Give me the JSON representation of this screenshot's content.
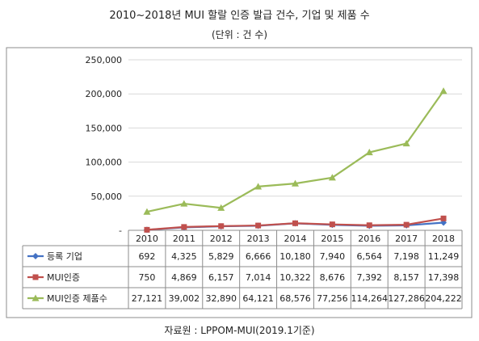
{
  "title": "2010~2018년 MUI 할랄 인증 발급 건수, 기업 및 제품 수",
  "subtitle": "(단위 : 건 수)",
  "source": "자료원 : LPPOM-MUI(2019.1기준)",
  "chart_data": {
    "type": "line",
    "categories": [
      "2010",
      "2011",
      "2012",
      "2013",
      "2014",
      "2015",
      "2016",
      "2017",
      "2018"
    ],
    "ylim": [
      0,
      250000
    ],
    "y_ticks": [
      "-",
      "50,000",
      "100,000",
      "150,000",
      "200,000",
      "250,000"
    ],
    "grid": true,
    "legend": "bottom-table",
    "series": [
      {
        "name": "등록 기업",
        "color": "#4472C4",
        "marker": "diamond",
        "values": [
          692,
          4325,
          5829,
          6666,
          10180,
          7940,
          6564,
          7198,
          11249
        ],
        "labels": [
          "692",
          "4,325",
          "5,829",
          "6,666",
          "10,180",
          "7,940",
          "6,564",
          "7,198",
          "11,249"
        ]
      },
      {
        "name": "MUI인증",
        "color": "#C0504D",
        "marker": "square",
        "values": [
          750,
          4869,
          6157,
          7014,
          10322,
          8676,
          7392,
          8157,
          17398
        ],
        "labels": [
          "750",
          "4,869",
          "6,157",
          "7,014",
          "10,322",
          "8,676",
          "7,392",
          "8,157",
          "17,398"
        ]
      },
      {
        "name": "MUI인증 제품수",
        "color": "#9BBB59",
        "marker": "triangle",
        "values": [
          27121,
          39002,
          32890,
          64121,
          68576,
          77256,
          114264,
          127286,
          204222
        ],
        "labels": [
          "27,121",
          "39,002",
          "32,890",
          "64,121",
          "68,576",
          "77,256",
          "114,264",
          "127,286",
          "204,222"
        ]
      }
    ]
  }
}
